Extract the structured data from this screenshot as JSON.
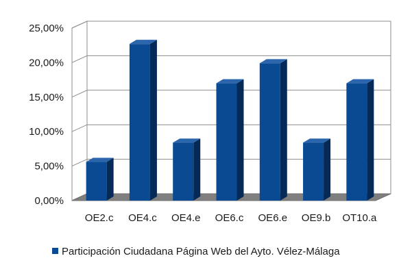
{
  "chart_data": {
    "type": "bar",
    "categories": [
      "OE2.c",
      "OE4.c",
      "OE4.e",
      "OE6.c",
      "OE6.e",
      "OE9.b",
      "OT10.a"
    ],
    "series": [
      {
        "name": "Participación Ciudadana Página Web del Ayto. Vélez-Málaga",
        "values": [
          5.6,
          22.7,
          8.4,
          17.0,
          19.9,
          8.4,
          17.0
        ]
      }
    ],
    "y_ticks": [
      "0,00%",
      "5,00%",
      "10,00%",
      "15,00%",
      "20,00%",
      "25,00%"
    ],
    "ylim": [
      0,
      25
    ],
    "y_unit": "%",
    "grid": true,
    "legend_position": "bottom",
    "three_d": true,
    "colors": {
      "bar_front": "#0a4a93",
      "bar_side": "#062a57",
      "bar_top": "#2b66ad",
      "grid": "#8c8c8c",
      "floor": "#7f7f7f",
      "wall": "#ffffff"
    }
  }
}
